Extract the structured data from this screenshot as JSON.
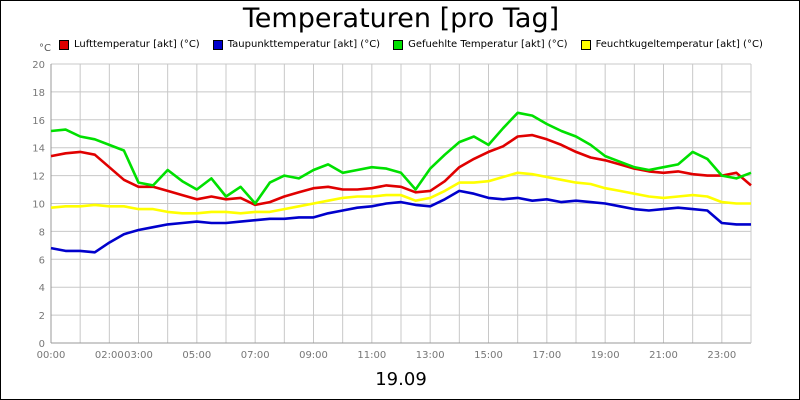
{
  "chart_data": {
    "type": "line",
    "title": "Temperaturen [pro Tag]",
    "xlabel": "19.09",
    "ylabel": "°C",
    "ylim": [
      0,
      20
    ],
    "xlim": [
      0,
      24
    ],
    "yticks": [
      0,
      2,
      4,
      6,
      8,
      10,
      12,
      14,
      16,
      18,
      20
    ],
    "xticks": [
      {
        "h": 0,
        "label": "00:00"
      },
      {
        "h": 2,
        "label": "02:00"
      },
      {
        "h": 3,
        "label": "03:00"
      },
      {
        "h": 5,
        "label": "05:00"
      },
      {
        "h": 7,
        "label": "07:00"
      },
      {
        "h": 9,
        "label": "09:00"
      },
      {
        "h": 11,
        "label": "11:00"
      },
      {
        "h": 13,
        "label": "13:00"
      },
      {
        "h": 15,
        "label": "15:00"
      },
      {
        "h": 17,
        "label": "17:00"
      },
      {
        "h": 19,
        "label": "19:00"
      },
      {
        "h": 21,
        "label": "21:00"
      },
      {
        "h": 23,
        "label": "23:00"
      }
    ],
    "grid": true,
    "series": [
      {
        "name": "Lufttemperatur [akt] (°C)",
        "color": "#e00000",
        "x": [
          0,
          0.5,
          1,
          1.5,
          2,
          2.5,
          3,
          3.5,
          4,
          4.5,
          5,
          5.5,
          6,
          6.5,
          7,
          7.5,
          8,
          8.5,
          9,
          9.5,
          10,
          10.5,
          11,
          11.5,
          12,
          12.5,
          13,
          13.5,
          14,
          14.5,
          15,
          15.5,
          16,
          16.5,
          17,
          17.5,
          18,
          18.5,
          19,
          19.5,
          20,
          20.5,
          21,
          21.5,
          22,
          22.5,
          23,
          23.5,
          24
        ],
        "values": [
          13.4,
          13.6,
          13.7,
          13.5,
          12.6,
          11.7,
          11.2,
          11.2,
          10.9,
          10.6,
          10.3,
          10.5,
          10.3,
          10.4,
          9.9,
          10.1,
          10.5,
          10.8,
          11.1,
          11.2,
          11.0,
          11.0,
          11.1,
          11.3,
          11.2,
          10.8,
          10.9,
          11.6,
          12.6,
          13.2,
          13.7,
          14.1,
          14.8,
          14.9,
          14.6,
          14.2,
          13.7,
          13.3,
          13.1,
          12.8,
          12.5,
          12.3,
          12.2,
          12.3,
          12.1,
          12.0,
          12.0,
          12.2,
          11.3
        ]
      },
      {
        "name": "Taupunkttemperatur [akt] (°C)",
        "color": "#0000cc",
        "x": [
          0,
          0.5,
          1,
          1.5,
          2,
          2.5,
          3,
          3.5,
          4,
          4.5,
          5,
          5.5,
          6,
          6.5,
          7,
          7.5,
          8,
          8.5,
          9,
          9.5,
          10,
          10.5,
          11,
          11.5,
          12,
          12.5,
          13,
          13.5,
          14,
          14.5,
          15,
          15.5,
          16,
          16.5,
          17,
          17.5,
          18,
          18.5,
          19,
          19.5,
          20,
          20.5,
          21,
          21.5,
          22,
          22.5,
          23,
          23.5,
          24
        ],
        "values": [
          6.8,
          6.6,
          6.6,
          6.5,
          7.2,
          7.8,
          8.1,
          8.3,
          8.5,
          8.6,
          8.7,
          8.6,
          8.6,
          8.7,
          8.8,
          8.9,
          8.9,
          9.0,
          9.0,
          9.3,
          9.5,
          9.7,
          9.8,
          10.0,
          10.1,
          9.9,
          9.8,
          10.3,
          10.9,
          10.7,
          10.4,
          10.3,
          10.4,
          10.2,
          10.3,
          10.1,
          10.2,
          10.1,
          10.0,
          9.8,
          9.6,
          9.5,
          9.6,
          9.7,
          9.6,
          9.5,
          8.6,
          8.5,
          8.5
        ]
      },
      {
        "name": "Gefuehlte Temperatur [akt] (°C)",
        "color": "#00e000",
        "x": [
          0,
          0.5,
          1,
          1.5,
          2,
          2.5,
          3,
          3.5,
          4,
          4.5,
          5,
          5.5,
          6,
          6.5,
          7,
          7.5,
          8,
          8.5,
          9,
          9.5,
          10,
          10.5,
          11,
          11.5,
          12,
          12.5,
          13,
          13.5,
          14,
          14.5,
          15,
          15.5,
          16,
          16.5,
          17,
          17.5,
          18,
          18.5,
          19,
          19.5,
          20,
          20.5,
          21,
          21.5,
          22,
          22.5,
          23,
          23.5,
          24
        ],
        "values": [
          15.2,
          15.3,
          14.8,
          14.6,
          14.2,
          13.8,
          11.5,
          11.3,
          12.4,
          11.6,
          11.0,
          11.8,
          10.5,
          11.2,
          10.0,
          11.5,
          12.0,
          11.8,
          12.4,
          12.8,
          12.2,
          12.4,
          12.6,
          12.5,
          12.2,
          11.0,
          12.5,
          13.5,
          14.4,
          14.8,
          14.2,
          15.4,
          16.5,
          16.3,
          15.7,
          15.2,
          14.8,
          14.2,
          13.4,
          13.0,
          12.6,
          12.4,
          12.6,
          12.8,
          13.7,
          13.2,
          12.0,
          11.8,
          12.2
        ]
      },
      {
        "name": "Feuchtkugeltemperatur [akt] (°C)",
        "color": "#ffff00",
        "x": [
          0,
          0.5,
          1,
          1.5,
          2,
          2.5,
          3,
          3.5,
          4,
          4.5,
          5,
          5.5,
          6,
          6.5,
          7,
          7.5,
          8,
          8.5,
          9,
          9.5,
          10,
          10.5,
          11,
          11.5,
          12,
          12.5,
          13,
          13.5,
          14,
          14.5,
          15,
          15.5,
          16,
          16.5,
          17,
          17.5,
          18,
          18.5,
          19,
          19.5,
          20,
          20.5,
          21,
          21.5,
          22,
          22.5,
          23,
          23.5,
          24
        ],
        "values": [
          9.7,
          9.8,
          9.8,
          9.9,
          9.8,
          9.8,
          9.6,
          9.6,
          9.4,
          9.3,
          9.3,
          9.4,
          9.4,
          9.3,
          9.4,
          9.4,
          9.6,
          9.8,
          10.0,
          10.2,
          10.4,
          10.5,
          10.5,
          10.6,
          10.6,
          10.2,
          10.4,
          10.9,
          11.5,
          11.5,
          11.6,
          11.9,
          12.2,
          12.1,
          11.9,
          11.7,
          11.5,
          11.4,
          11.1,
          10.9,
          10.7,
          10.5,
          10.4,
          10.5,
          10.6,
          10.5,
          10.1,
          10.0,
          10.0
        ]
      }
    ]
  }
}
